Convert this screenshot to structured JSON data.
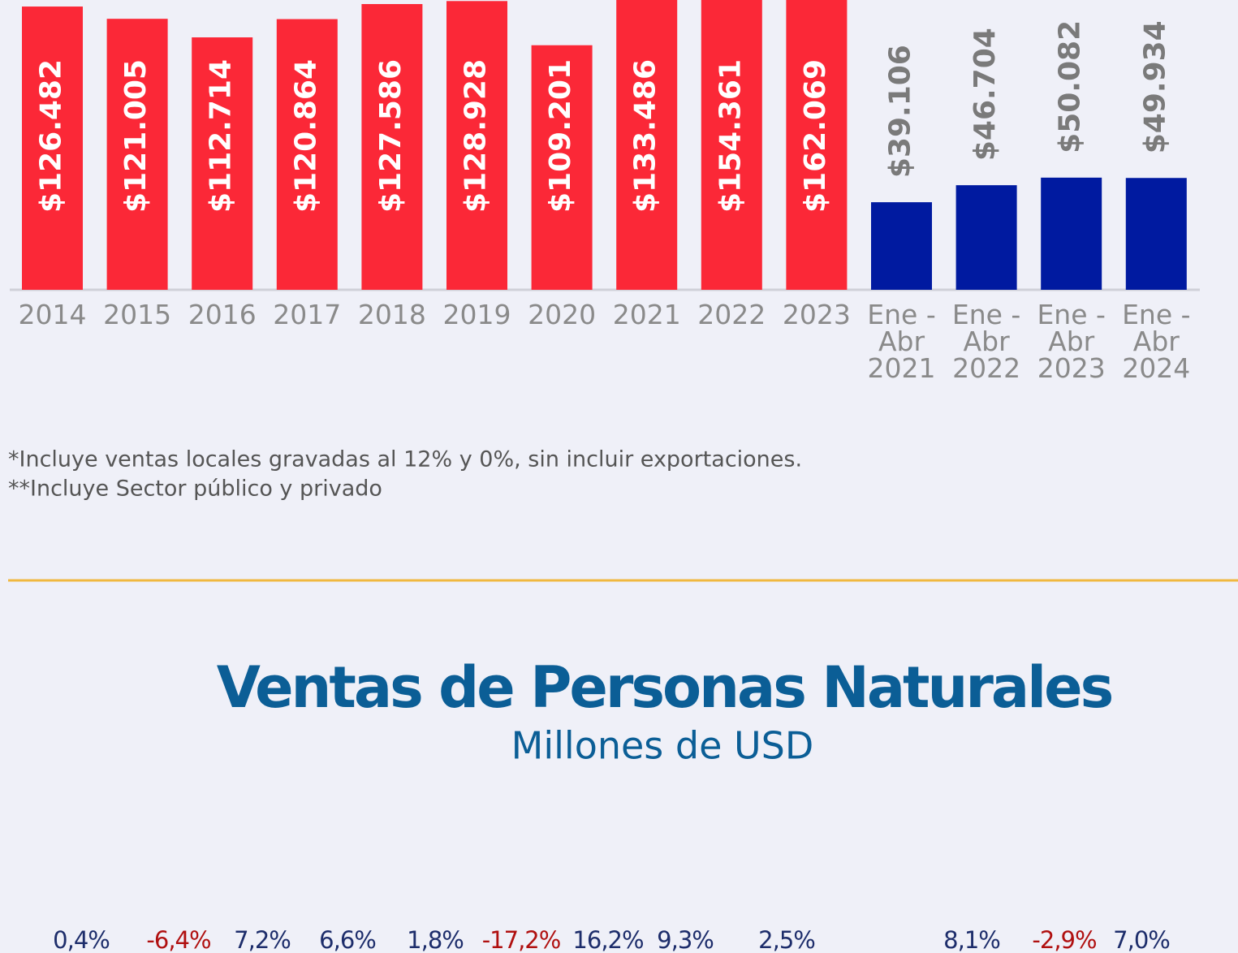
{
  "chart_data": [
    {
      "type": "bar",
      "categories": [
        "2014",
        "2015",
        "2016",
        "2017",
        "2018",
        "2019",
        "2020",
        "2021",
        "2022",
        "2023",
        "Ene -\nAbr\n2021",
        "Ene -\nAbr\n2022",
        "Ene -\nAbr\n2023",
        "Ene -\nAbr\n2024"
      ],
      "values": [
        126482,
        121005,
        112714,
        120864,
        127586,
        128928,
        109201,
        133486,
        154361,
        162069,
        39106,
        46704,
        50082,
        49934
      ],
      "value_labels": [
        "$126.482",
        "$121.005",
        "$112.714",
        "$120.864",
        "$127.586",
        "$128.928",
        "$109.201",
        "$133.486",
        "$154.361",
        "$162.069",
        "$39.106",
        "$46.704",
        "$50.082",
        "$49.934"
      ],
      "colors": [
        "#fb2837",
        "#fb2837",
        "#fb2837",
        "#fb2837",
        "#fb2837",
        "#fb2837",
        "#fb2837",
        "#fb2837",
        "#fb2837",
        "#fb2837",
        "#001aa0",
        "#001aa0",
        "#001aa0",
        "#001aa0"
      ],
      "ylim": [
        0,
        129400
      ],
      "notes": [
        "*Incluye ventas locales gravadas al 12% y 0%, sin incluir exportaciones.",
        "**Incluye Sector público y privado"
      ]
    },
    {
      "type": "bar",
      "title": "Ventas de Personas Naturales",
      "subtitle": "Millones de USD",
      "values": [
        0.4,
        -6.4,
        7.2,
        6.6,
        1.8,
        -17.2,
        16.2,
        9.3,
        2.5,
        8.1,
        -2.9,
        7.0
      ],
      "value_labels": [
        "0,4%",
        "-6,4%",
        "7,2%",
        "6,6%",
        "1,8%",
        "-17,2%",
        "16,2%",
        "9,3%",
        "2,5%",
        "8,1%",
        "-2,9%",
        "7,0%"
      ]
    }
  ]
}
